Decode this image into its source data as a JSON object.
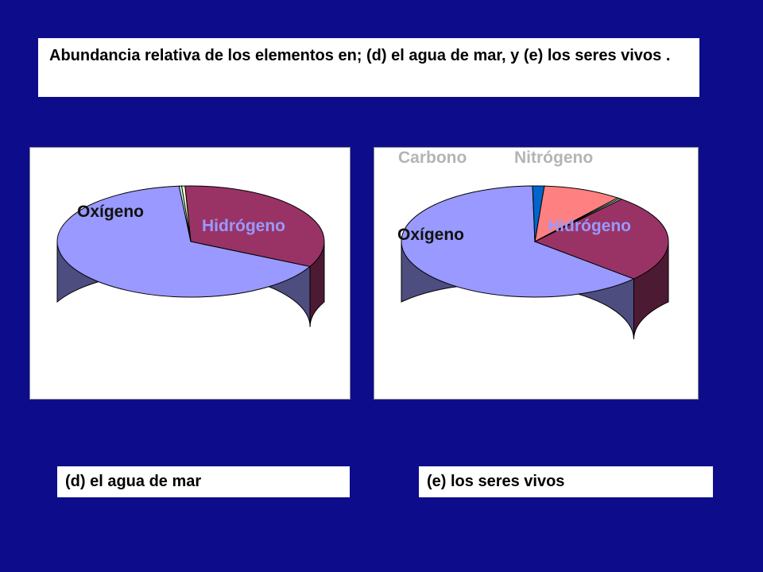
{
  "title": "Abundancia relativa de los elementos en; (d) el agua de mar, y (e) los seres vivos .",
  "captions": {
    "d": "(d) el agua de mar",
    "e": "(e) los seres vivos"
  },
  "chart_data": [
    {
      "type": "pie",
      "variant": "3d",
      "caption": "(d) el agua de mar",
      "slices": [
        {
          "label": "Hidrógeno",
          "value": 66.2,
          "color": "#9999ff",
          "side_color": "#4d4d80"
        },
        {
          "label": "Oxígeno",
          "value": 33.1,
          "color": "#993366",
          "side_color": "#4d1a33"
        },
        {
          "label": "",
          "value": 0.4,
          "color": "#ffffcc",
          "side_color": "#80806a"
        },
        {
          "label": "",
          "value": 0.3,
          "color": "#ccffff",
          "side_color": "#668080"
        }
      ]
    },
    {
      "type": "pie",
      "variant": "3d",
      "caption": "(e) los seres vivos",
      "slices": [
        {
          "label": "Hidrógeno",
          "value": 63.0,
          "color": "#9999ff",
          "side_color": "#4d4d80"
        },
        {
          "label": "Oxígeno",
          "value": 25.5,
          "color": "#993366",
          "side_color": "#4d1a33"
        },
        {
          "label": "",
          "value": 0.3,
          "color": "#ffffcc",
          "side_color": "#80806a"
        },
        {
          "label": "",
          "value": 0.3,
          "color": "#ccffff",
          "side_color": "#668080"
        },
        {
          "label": "Carbono",
          "value": 9.5,
          "color": "#ff8080",
          "side_color": "#804040"
        },
        {
          "label": "Nitrógeno",
          "value": 1.4,
          "color": "#0066cc",
          "side_color": "#003366"
        }
      ]
    }
  ]
}
